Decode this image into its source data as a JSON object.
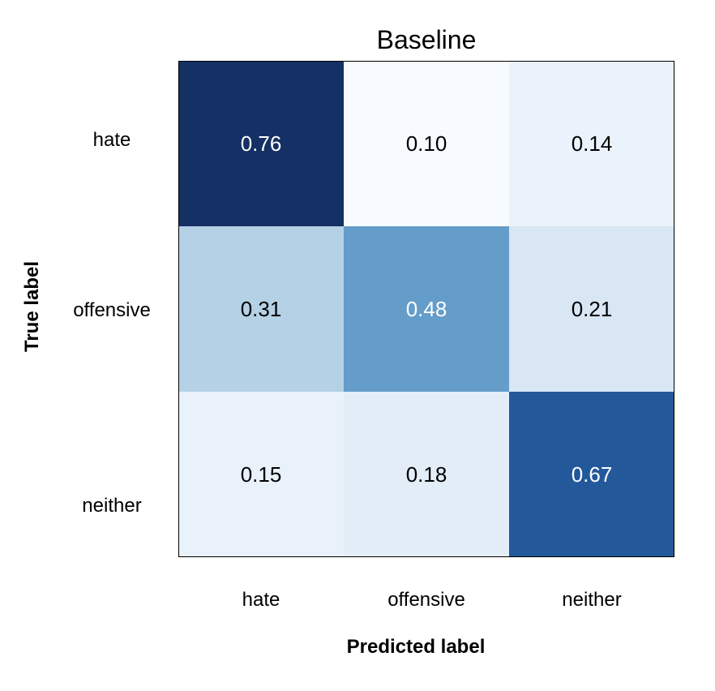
{
  "chart_data": {
    "type": "heatmap",
    "title": "Baseline",
    "xlabel": "Predicted label",
    "ylabel": "True label",
    "x_categories": [
      "hate",
      "offensive",
      "neither"
    ],
    "y_categories": [
      "hate",
      "offensive",
      "neither"
    ],
    "values": [
      [
        0.76,
        0.1,
        0.14
      ],
      [
        0.31,
        0.48,
        0.21
      ],
      [
        0.15,
        0.18,
        0.67
      ]
    ],
    "value_labels": [
      [
        "0.76",
        "0.10",
        "0.14"
      ],
      [
        "0.31",
        "0.48",
        "0.21"
      ],
      [
        "0.15",
        "0.18",
        "0.67"
      ]
    ],
    "colormap": "Blues",
    "cell_colors": [
      [
        "#143064",
        "#f7fbff",
        "#eaf2fb"
      ],
      [
        "#b4d1e6",
        "#659dca",
        "#d9e6f4"
      ],
      [
        "#e9f1fa",
        "#e2edf8",
        "#23589b"
      ]
    ],
    "text_colors": {
      "dark_cell": "#ffffff",
      "light_cell": "#000000"
    },
    "grid": false,
    "legend": false
  }
}
